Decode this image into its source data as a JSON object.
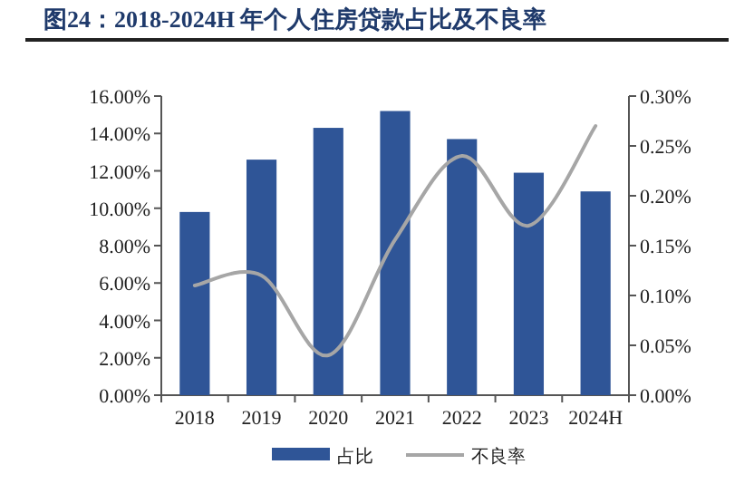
{
  "chart_data": {
    "type": "bar",
    "title": "图24：2018-2024H 年个人住房贷款占比及不良率",
    "categories": [
      "2018",
      "2019",
      "2020",
      "2021",
      "2022",
      "2023",
      "2024H"
    ],
    "series": [
      {
        "name": "占比",
        "color": "#2f5597",
        "values": [
          9.8,
          12.6,
          14.3,
          15.2,
          13.7,
          11.9,
          10.9
        ]
      },
      {
        "name": "不良率",
        "type": "line",
        "color": "#a6a6a6",
        "axis": "y2",
        "values": [
          0.11,
          0.12,
          0.04,
          0.156,
          0.24,
          0.17,
          0.27
        ]
      }
    ],
    "ylim": [
      0,
      16
    ],
    "yticks": [
      {
        "value": 0,
        "label": "0.00%"
      },
      {
        "value": 2,
        "label": "2.00%"
      },
      {
        "value": 4,
        "label": "4.00%"
      },
      {
        "value": 6,
        "label": "6.00%"
      },
      {
        "value": 8,
        "label": "8.00%"
      },
      {
        "value": 10,
        "label": "10.00%"
      },
      {
        "value": 12,
        "label": "12.00%"
      },
      {
        "value": 14,
        "label": "14.00%"
      },
      {
        "value": 16,
        "label": "16.00%"
      }
    ],
    "y2lim": [
      0,
      0.3
    ],
    "y2ticks": [
      {
        "value": 0,
        "label": "0.00%"
      },
      {
        "value": 0.05,
        "label": "0.05%"
      },
      {
        "value": 0.1,
        "label": "0.10%"
      },
      {
        "value": 0.15,
        "label": "0.15%"
      },
      {
        "value": 0.2,
        "label": "0.20%"
      },
      {
        "value": 0.25,
        "label": "0.25%"
      },
      {
        "value": 0.3,
        "label": "0.30%"
      }
    ],
    "legend": "bottom"
  }
}
